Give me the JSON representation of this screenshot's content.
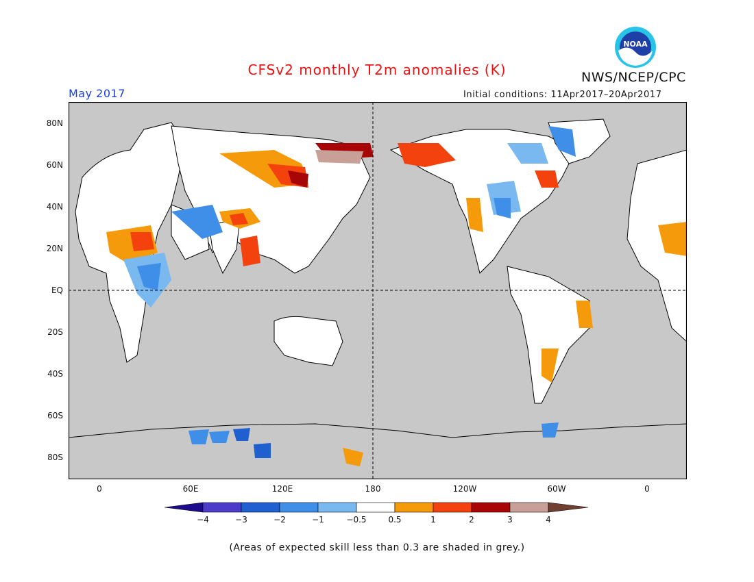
{
  "header": {
    "title": "CFSv2 monthly T2m anomalies (K)",
    "agency": "NWS/NCEP/CPC",
    "valid_month": "May 2017",
    "initial_conditions": "Initial conditions: 11Apr2017–20Apr2017"
  },
  "logo": {
    "text": "NOAA"
  },
  "map": {
    "lat_labels": [
      "80N",
      "60N",
      "40N",
      "20N",
      "EQ",
      "20S",
      "40S",
      "60S",
      "80S"
    ],
    "lon_labels": [
      "0",
      "60E",
      "120E",
      "180",
      "120W",
      "60W",
      "0"
    ],
    "ocean_color": "#c8c8c8",
    "land_color": "#ffffff"
  },
  "colorbar": {
    "ticks": [
      "−4",
      "−3",
      "−2",
      "−1",
      "−0.5",
      "0.5",
      "1",
      "2",
      "3",
      "4"
    ],
    "colors": [
      "#1c0c8c",
      "#4a3cc8",
      "#1f5fd0",
      "#3f8fe8",
      "#7ab8f0",
      "#ffffff",
      "#f59a0a",
      "#f4420e",
      "#a80606",
      "#c8a098",
      "#704030"
    ]
  },
  "footer": {
    "note": "(Areas of expected skill less than 0.3 are shaded in grey.)"
  }
}
